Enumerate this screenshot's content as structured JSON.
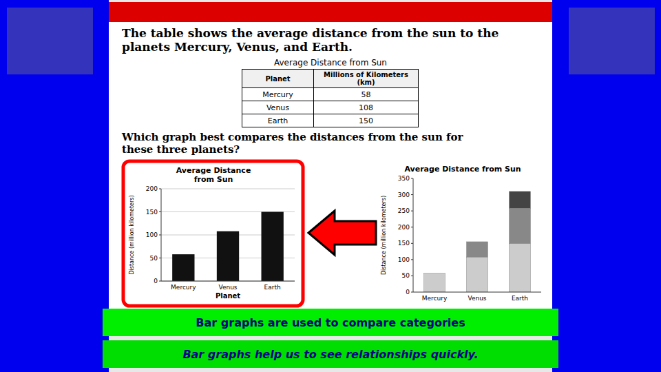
{
  "chart_data": [
    {
      "type": "bar",
      "title": "Average Distance\nfrom Sun",
      "categories": [
        "Mercury",
        "Venus",
        "Earth"
      ],
      "values": [
        58,
        108,
        150
      ],
      "color": "#111111",
      "xlabel": "Planet",
      "ylabel": "Distance (million kilometers)",
      "ylim": [
        0,
        200
      ],
      "yticks": [
        0,
        50,
        100,
        150,
        200
      ],
      "grid": true
    },
    {
      "type": "bar",
      "title": "Average Distance from Sun",
      "categories": [
        "Mercury",
        "Venus",
        "Earth"
      ],
      "series": [
        {
          "color": "#cccccc",
          "values": [
            58,
            108,
            150
          ]
        },
        {
          "color": "#888888",
          "values": [
            0,
            47,
            108
          ]
        },
        {
          "color": "#444444",
          "values": [
            0,
            0,
            52
          ]
        }
      ],
      "stacked": true,
      "ylabel": "Distance (million kilometers)",
      "ylim": [
        0,
        350
      ],
      "yticks": [
        0,
        50,
        100,
        150,
        200,
        250,
        300,
        350
      ],
      "grid": false
    }
  ],
  "page": {
    "title": "The table shows the average distance from the sun to the\nplanets Mercury, Venus, and Earth.",
    "table_title": "Average Distance from Sun",
    "table_columns": [
      "Planet",
      "Millions of Kilometers\n(km)"
    ],
    "table_rows": [
      [
        "Mercury",
        "58"
      ],
      [
        "Venus",
        "108"
      ],
      [
        "Earth",
        "150"
      ]
    ],
    "question": "Which graph best compares the distances from the sun for\nthese three planets?",
    "banners": [
      "Bar graphs are used to compare categories",
      "Bar graphs help us to see relationships quickly."
    ]
  }
}
